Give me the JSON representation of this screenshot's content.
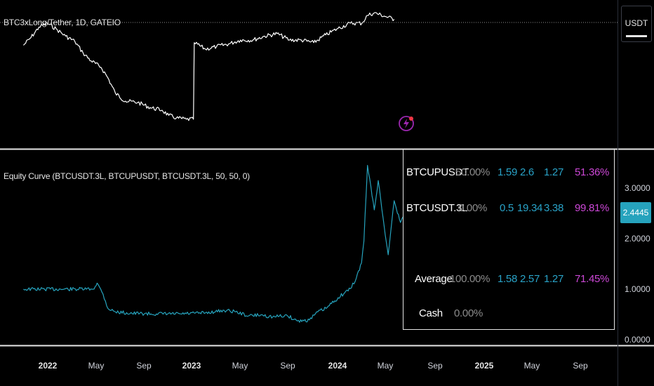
{
  "top_pane": {
    "symbol_label": "BTC3xLong/Tether, 1D, GATEIO",
    "currency_button": "USDT",
    "series_color": "#ffffff"
  },
  "bottom_pane": {
    "indicator_label": "Equity Curve (BTCUSDT.3L, BTCUPUSDT, BTCUSDT.3L, 50, 50, 0)",
    "series_color": "#26a3bd",
    "price_scale_ticks": [
      "3.0000",
      "2.0000",
      "1.0000",
      "0.0000"
    ],
    "last_value_tag": "2.4445"
  },
  "table": {
    "rows": [
      {
        "name": "BTCUPUSDT",
        "weight": "50.00%",
        "v1": "1.59",
        "v2": "2.6",
        "v3": "1.27",
        "pct": "51.36%"
      },
      {
        "name": "BTCUSDT.3L",
        "weight": "0.00%",
        "v1": "0.5",
        "v2": "19.34",
        "v3": "3.38",
        "pct": "99.81%"
      },
      {
        "name": "Average",
        "weight": "100.00%",
        "v1": "1.58",
        "v2": "2.57",
        "v3": "1.27",
        "pct": "71.45%"
      },
      {
        "name": "Cash",
        "weight": "0.00%"
      }
    ],
    "colors": {
      "name": "#ffffff",
      "weight": "#8c8c8c",
      "values": "#29a3c8",
      "pct": "#cc47d6"
    }
  },
  "time_axis": {
    "labels": [
      "2022",
      "May",
      "Sep",
      "2023",
      "May",
      "Sep",
      "2024",
      "May",
      "Sep",
      "2025",
      "May",
      "Sep"
    ]
  },
  "chart_data": [
    {
      "type": "line",
      "title": "BTC3xLong/Tether, 1D, GATEIO",
      "x": [
        "2021-11-01",
        "2021-11-20",
        "2021-12-10",
        "2021-12-31",
        "2022-01-25",
        "2022-02-15",
        "2022-03-10",
        "2022-03-31",
        "2022-04-20",
        "2022-05-15",
        "2022-06-01",
        "2022-06-20",
        "2022-07-15",
        "2022-08-15",
        "2022-09-15",
        "2022-10-15",
        "2022-11-01",
        "2022-11-20",
        "2022-12-15",
        "2023-01-02",
        "2023-01-04",
        "2023-02-01",
        "2023-03-01",
        "2023-03-31",
        "2023-04-30",
        "2023-05-31",
        "2023-06-30",
        "2023-07-31",
        "2023-08-31",
        "2023-09-30",
        "2023-10-31",
        "2023-11-30",
        "2023-12-31",
        "2024-01-31",
        "2024-02-29",
        "2024-03-14",
        "2024-03-31",
        "2024-04-30",
        "2024-05-20"
      ],
      "values": [
        30,
        36,
        44,
        47,
        42,
        37,
        33,
        24,
        18,
        13,
        5,
        -7,
        -13,
        -14,
        -18,
        -20,
        -24,
        -26,
        -27,
        -27,
        32,
        27,
        29,
        31,
        34,
        34,
        37,
        39,
        34,
        34,
        32,
        38,
        43,
        47,
        47,
        53,
        55,
        52,
        50
      ],
      "xlabel": "",
      "ylabel": ""
    },
    {
      "type": "line",
      "title": "Equity Curve (BTCUSDT.3L, BTCUPUSDT, BTCUSDT.3L, 50, 50, 0)",
      "x": [
        "2021-11-01",
        "2022-04-25",
        "2022-05-05",
        "2022-05-20",
        "2022-06-01",
        "2022-06-20",
        "2022-08-01",
        "2022-10-01",
        "2022-12-01",
        "2023-02-01",
        "2023-03-20",
        "2023-04-15",
        "2023-05-20",
        "2023-06-20",
        "2023-07-20",
        "2023-08-25",
        "2023-09-20",
        "2023-10-20",
        "2023-11-10",
        "2023-12-01",
        "2023-12-31",
        "2024-01-31",
        "2024-02-15",
        "2024-02-28",
        "2024-03-05",
        "2024-03-14",
        "2024-03-31",
        "2024-04-10",
        "2024-04-25",
        "2024-05-05",
        "2024-05-20",
        "2024-06-05",
        "2024-06-12"
      ],
      "values": [
        1.0,
        1.0,
        1.12,
        0.9,
        0.62,
        0.55,
        0.52,
        0.51,
        0.51,
        0.53,
        0.58,
        0.56,
        0.47,
        0.49,
        0.45,
        0.48,
        0.37,
        0.39,
        0.55,
        0.62,
        0.83,
        1.01,
        1.22,
        1.52,
        1.95,
        3.45,
        2.57,
        3.15,
        2.23,
        1.68,
        2.75,
        2.32,
        2.44
      ],
      "ylim": [
        0,
        3.5
      ],
      "yticks": [
        "0.0000",
        "1.0000",
        "2.0000",
        "3.0000"
      ],
      "xlabel": "",
      "ylabel": ""
    }
  ]
}
